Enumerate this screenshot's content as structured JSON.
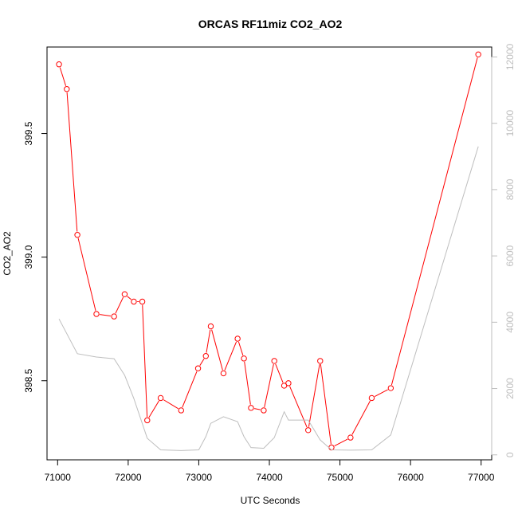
{
  "chart_data": {
    "type": "line",
    "title": "ORCAS RF11miz CO2_AO2",
    "xlabel": "UTC Seconds",
    "ylabel": "CO2_AO2",
    "xlim": [
      70850,
      77150
    ],
    "ylim": [
      398.18,
      399.85
    ],
    "y2lim": [
      -150,
      12300
    ],
    "x_ticks": [
      71000,
      72000,
      73000,
      74000,
      75000,
      76000,
      77000
    ],
    "y_ticks": [
      398.5,
      399.0,
      399.5
    ],
    "y2_ticks": [
      0,
      2000,
      4000,
      6000,
      8000,
      10000,
      12000
    ],
    "grid": false,
    "series": [
      {
        "axis": "left",
        "color": "#ff0000",
        "marker": "circle",
        "x": [
          71020,
          71130,
          71280,
          71550,
          71800,
          71950,
          72080,
          72200,
          72270,
          72460,
          72750,
          72990,
          73100,
          73170,
          73350,
          73550,
          73640,
          73740,
          73920,
          74070,
          74210,
          74270,
          74550,
          74720,
          74880,
          75150,
          75450,
          75720,
          76960
        ],
        "values": [
          399.78,
          399.68,
          399.09,
          398.77,
          398.76,
          398.85,
          398.82,
          398.82,
          398.34,
          398.43,
          398.38,
          398.55,
          398.6,
          398.72,
          398.53,
          398.67,
          398.59,
          398.39,
          398.38,
          398.58,
          398.48,
          398.49,
          398.3,
          398.58,
          398.23,
          398.27,
          398.43,
          398.47,
          399.82
        ]
      },
      {
        "axis": "right",
        "color": "#bebebe",
        "marker": "none",
        "x": [
          71020,
          71280,
          71550,
          71800,
          71950,
          72080,
          72270,
          72460,
          72750,
          73000,
          73100,
          73170,
          73350,
          73550,
          73640,
          73740,
          73920,
          74070,
          74210,
          74270,
          74550,
          74720,
          74880,
          75150,
          75450,
          75720,
          76960
        ],
        "values": [
          4100,
          3050,
          2950,
          2900,
          2400,
          1700,
          500,
          150,
          130,
          150,
          550,
          950,
          1150,
          1000,
          550,
          220,
          200,
          520,
          1300,
          1050,
          1050,
          450,
          150,
          140,
          150,
          600,
          9300
        ]
      }
    ]
  }
}
